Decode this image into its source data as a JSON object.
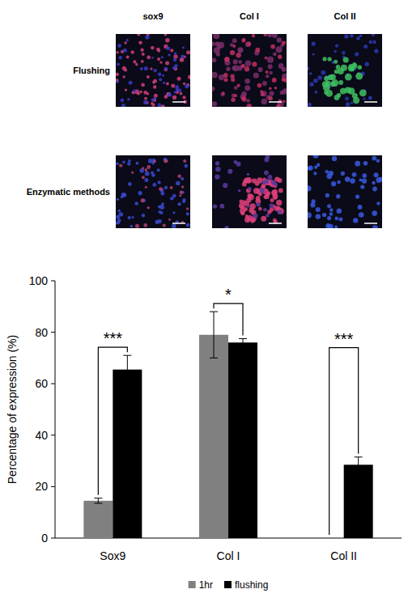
{
  "figure": {
    "columns": [
      "sox9",
      "Col I",
      "Col II"
    ],
    "rows": [
      "Flushing",
      "Enzymatic methods"
    ]
  },
  "chart_data": {
    "type": "bar",
    "categories": [
      "Sox9",
      "Col I",
      "Col II"
    ],
    "series": [
      {
        "name": "1hr",
        "color": "#808080",
        "values": [
          14.5,
          79,
          0
        ],
        "errors": [
          1,
          9,
          null
        ]
      },
      {
        "name": "flushing",
        "color": "#000000",
        "values": [
          65.5,
          76,
          28.5
        ],
        "errors": [
          5.5,
          1.5,
          3
        ]
      }
    ],
    "y_label": "Percentage of expression (%)",
    "ylim": [
      0,
      100
    ],
    "yticks": [
      0,
      20,
      40,
      60,
      80,
      100
    ],
    "annotations": [
      "***",
      "*",
      "***"
    ],
    "legend": "bottom"
  }
}
